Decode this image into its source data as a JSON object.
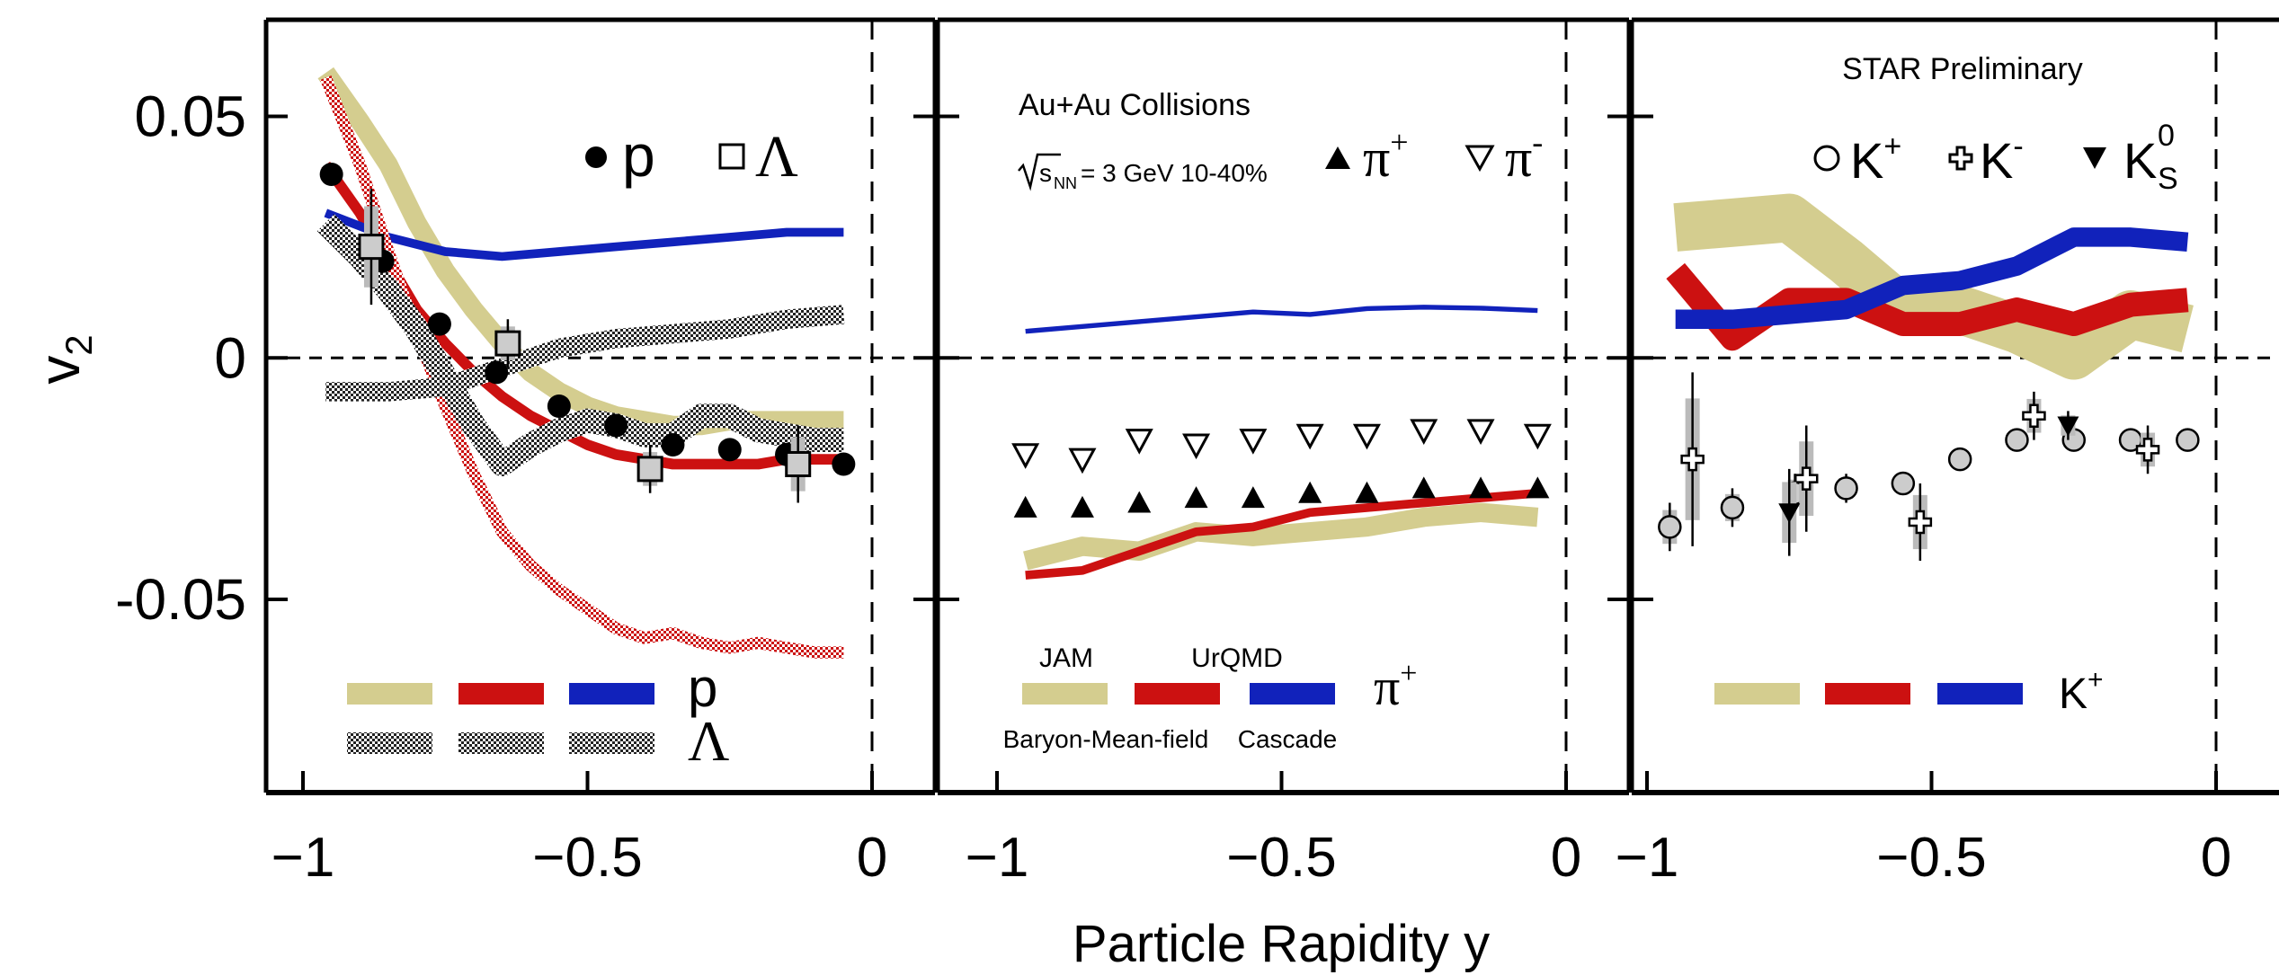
{
  "chart_data": [
    {
      "type": "line",
      "panel": "left",
      "ylabel": "v",
      "ylabel_sub": "2",
      "xlim": [
        -1.1,
        0.1
      ],
      "ylim": [
        -0.09,
        0.07
      ],
      "x_ticks": [
        -1,
        -0.5,
        0
      ],
      "x_tick_labels": [
        "−1",
        "−0.5",
        "0"
      ],
      "y_ticks": [
        0.05,
        0,
        -0.05
      ],
      "y_tick_labels": [
        "0.05",
        "0",
        "-0.05"
      ],
      "legend_markers": [
        {
          "symbol": "circle-filled",
          "label": "p"
        },
        {
          "symbol": "square-open",
          "label": "Λ"
        }
      ],
      "legend_bands": {
        "row1_label": "p",
        "row2_label": "Λ"
      },
      "series": [
        {
          "kind": "band",
          "model": "JAM",
          "color": "#d4cd8f",
          "width": 0.004,
          "x": [
            -0.96,
            -0.9,
            -0.85,
            -0.8,
            -0.75,
            -0.7,
            -0.65,
            -0.6,
            -0.55,
            -0.5,
            -0.45,
            -0.4,
            -0.35,
            -0.3,
            -0.25,
            -0.2,
            -0.15,
            -0.1,
            -0.05
          ],
          "y": [
            0.059,
            0.049,
            0.04,
            0.028,
            0.018,
            0.01,
            0.003,
            -0.003,
            -0.007,
            -0.01,
            -0.012,
            -0.013,
            -0.014,
            -0.014,
            -0.013,
            -0.013,
            -0.013,
            -0.013,
            -0.013
          ]
        },
        {
          "kind": "line",
          "model": "UrQMD",
          "color": "#cc1111",
          "width": 0.0022,
          "x": [
            -0.96,
            -0.9,
            -0.85,
            -0.8,
            -0.75,
            -0.7,
            -0.65,
            -0.6,
            -0.55,
            -0.5,
            -0.45,
            -0.4,
            -0.35,
            -0.3,
            -0.25,
            -0.2,
            -0.15,
            -0.1,
            -0.05
          ],
          "y": [
            0.04,
            0.03,
            0.02,
            0.01,
            0.003,
            -0.003,
            -0.008,
            -0.012,
            -0.015,
            -0.018,
            -0.02,
            -0.021,
            -0.022,
            -0.022,
            -0.022,
            -0.022,
            -0.021,
            -0.021,
            -0.021
          ]
        },
        {
          "kind": "line",
          "model": "Cascade",
          "color": "#1122bb",
          "width": 0.0018,
          "x": [
            -0.96,
            -0.85,
            -0.75,
            -0.65,
            -0.55,
            -0.45,
            -0.35,
            -0.25,
            -0.15,
            -0.05
          ],
          "y": [
            0.03,
            0.025,
            0.022,
            0.021,
            0.022,
            0.023,
            0.024,
            0.025,
            0.026,
            0.026
          ]
        },
        {
          "kind": "hatched",
          "model": "UrQMD",
          "color": "#cc1111",
          "width": 0.0025,
          "x": [
            -0.96,
            -0.9,
            -0.85,
            -0.8,
            -0.75,
            -0.7,
            -0.65,
            -0.6,
            -0.55,
            -0.5,
            -0.45,
            -0.4,
            -0.35,
            -0.3,
            -0.25,
            -0.2,
            -0.15,
            -0.1,
            -0.05
          ],
          "y": [
            0.058,
            0.04,
            0.022,
            0.005,
            -0.01,
            -0.024,
            -0.036,
            -0.043,
            -0.048,
            -0.052,
            -0.056,
            -0.058,
            -0.057,
            -0.059,
            -0.06,
            -0.059,
            -0.06,
            -0.061,
            -0.061
          ]
        },
        {
          "kind": "hatched",
          "model": "JAM",
          "color": "#222222",
          "width": 0.005,
          "x": [
            -0.96,
            -0.9,
            -0.85,
            -0.8,
            -0.75,
            -0.7,
            -0.65,
            -0.6,
            -0.55,
            -0.5,
            -0.45,
            -0.4,
            -0.35,
            -0.3,
            -0.25,
            -0.2,
            -0.15,
            -0.1,
            -0.05
          ],
          "y": [
            0.028,
            0.021,
            0.014,
            0.006,
            -0.004,
            -0.014,
            -0.022,
            -0.018,
            -0.015,
            -0.013,
            -0.014,
            -0.016,
            -0.016,
            -0.012,
            -0.012,
            -0.015,
            -0.016,
            -0.017,
            -0.017
          ]
        },
        {
          "kind": "hatched",
          "model": "UrQMD",
          "color": "#222222",
          "width": 0.004,
          "x": [
            -0.96,
            -0.85,
            -0.75,
            -0.65,
            -0.55,
            -0.45,
            -0.35,
            -0.25,
            -0.15,
            -0.05
          ],
          "y": [
            -0.007,
            -0.007,
            -0.006,
            -0.002,
            0.002,
            0.004,
            0.005,
            0.006,
            0.008,
            0.009
          ]
        }
      ],
      "markers": [
        {
          "name": "p",
          "symbol": "circle-filled",
          "x": [
            -0.95,
            -0.88,
            -0.86,
            -0.76,
            -0.66,
            -0.55,
            -0.45,
            -0.35,
            -0.25,
            -0.15,
            -0.05
          ],
          "y": [
            0.038,
            0.022,
            0.02,
            0.007,
            -0.003,
            -0.01,
            -0.014,
            -0.018,
            -0.019,
            -0.02,
            -0.022
          ]
        },
        {
          "name": "Λ",
          "symbol": "square-open",
          "x": [
            -0.88,
            -0.64,
            -0.39,
            -0.13
          ],
          "y": [
            0.023,
            0.003,
            -0.023,
            -0.022
          ],
          "err": [
            0.012,
            0.005,
            0.005,
            0.008
          ]
        }
      ]
    },
    {
      "type": "line",
      "panel": "middle",
      "xlim": [
        -1.1,
        0.1
      ],
      "ylim": [
        -0.09,
        0.07
      ],
      "x_ticks": [
        -1,
        -0.5,
        0
      ],
      "x_tick_labels": [
        "−1",
        "−0.5",
        "0"
      ],
      "annotations": [
        {
          "id": "collisions",
          "text": "Au+Au Collisions"
        },
        {
          "id": "energy",
          "text": "= 3 GeV 10-40%"
        },
        {
          "id": "snn_base",
          "text": "s"
        },
        {
          "id": "snn_sub",
          "text": "NN"
        }
      ],
      "legend_markers": [
        {
          "symbol": "triangle-up-filled",
          "label": "π",
          "sup": "+"
        },
        {
          "symbol": "triangle-down-open",
          "label": "π",
          "sup": "-"
        }
      ],
      "legend_bands": {
        "model_labels_top": [
          "JAM",
          "UrQMD"
        ],
        "model_labels_bottom": [
          "Baryon-Mean-field",
          "Cascade"
        ],
        "row1_label": "π",
        "row1_sup": "+"
      },
      "series": [
        {
          "kind": "band",
          "model": "JAM",
          "color": "#d4cd8f",
          "width": 0.004,
          "x": [
            -0.95,
            -0.85,
            -0.75,
            -0.65,
            -0.55,
            -0.45,
            -0.35,
            -0.25,
            -0.15,
            -0.05
          ],
          "y": [
            -0.042,
            -0.039,
            -0.04,
            -0.036,
            -0.037,
            -0.036,
            -0.035,
            -0.033,
            -0.032,
            -0.033
          ]
        },
        {
          "kind": "line",
          "model": "UrQMD",
          "color": "#cc1111",
          "width": 0.0018,
          "x": [
            -0.95,
            -0.85,
            -0.75,
            -0.65,
            -0.55,
            -0.45,
            -0.35,
            -0.25,
            -0.15,
            -0.05
          ],
          "y": [
            -0.045,
            -0.044,
            -0.04,
            -0.036,
            -0.035,
            -0.032,
            -0.031,
            -0.03,
            -0.029,
            -0.028
          ]
        },
        {
          "kind": "line",
          "model": "Cascade",
          "color": "#1122bb",
          "width": 0.001,
          "x": [
            -0.95,
            -0.85,
            -0.75,
            -0.65,
            -0.55,
            -0.45,
            -0.35,
            -0.25,
            -0.15,
            -0.05
          ],
          "y": [
            0.0055,
            0.0065,
            0.0075,
            0.0085,
            0.0095,
            0.009,
            0.0102,
            0.0105,
            0.0103,
            0.0098
          ]
        }
      ],
      "markers": [
        {
          "name": "π+",
          "symbol": "triangle-up-filled",
          "x": [
            -0.95,
            -0.85,
            -0.75,
            -0.65,
            -0.55,
            -0.45,
            -0.35,
            -0.25,
            -0.15,
            -0.05
          ],
          "y": [
            -0.031,
            -0.031,
            -0.03,
            -0.029,
            -0.029,
            -0.028,
            -0.028,
            -0.027,
            -0.027,
            -0.027
          ]
        },
        {
          "name": "π-",
          "symbol": "triangle-down-open",
          "x": [
            -0.95,
            -0.85,
            -0.75,
            -0.65,
            -0.55,
            -0.45,
            -0.35,
            -0.25,
            -0.15,
            -0.05
          ],
          "y": [
            -0.02,
            -0.021,
            -0.017,
            -0.018,
            -0.017,
            -0.016,
            -0.016,
            -0.015,
            -0.015,
            -0.016
          ]
        }
      ]
    },
    {
      "type": "line",
      "panel": "right",
      "xlim": [
        -1.1,
        0.1
      ],
      "ylim": [
        -0.09,
        0.07
      ],
      "x_ticks": [
        -1,
        -0.5,
        0
      ],
      "x_tick_labels": [
        "−1",
        "−0.5",
        "0"
      ],
      "annotations": [
        {
          "id": "preliminary",
          "text": "STAR Preliminary"
        }
      ],
      "legend_markers": [
        {
          "symbol": "circle-open",
          "label": "K",
          "sup": "+"
        },
        {
          "symbol": "cross-open",
          "label": "K",
          "sup": "-"
        },
        {
          "symbol": "triangle-down-filled",
          "label": "K",
          "sup": "0",
          "sub": "S"
        }
      ],
      "legend_bands": {
        "row1_label": "K",
        "row1_sup": "+"
      },
      "series": [
        {
          "kind": "band",
          "model": "JAM",
          "color": "#d4cd8f",
          "width": 0.01,
          "x": [
            -0.95,
            -0.85,
            -0.75,
            -0.65,
            -0.55,
            -0.45,
            -0.35,
            -0.25,
            -0.15,
            -0.05
          ],
          "y": [
            0.027,
            0.028,
            0.029,
            0.02,
            0.01,
            0.01,
            0.006,
            0.0005,
            0.009,
            0.006
          ]
        },
        {
          "kind": "band",
          "model": "UrQMD",
          "color": "#cc1111",
          "width": 0.005,
          "x": [
            -0.95,
            -0.85,
            -0.75,
            -0.65,
            -0.55,
            -0.45,
            -0.35,
            -0.25,
            -0.15,
            -0.05
          ],
          "y": [
            0.018,
            0.004,
            0.012,
            0.012,
            0.007,
            0.007,
            0.01,
            0.007,
            0.011,
            0.012
          ]
        },
        {
          "kind": "band",
          "model": "Cascade",
          "color": "#1122bb",
          "width": 0.004,
          "x": [
            -0.95,
            -0.85,
            -0.75,
            -0.65,
            -0.55,
            -0.45,
            -0.35,
            -0.25,
            -0.15,
            -0.05
          ],
          "y": [
            0.008,
            0.008,
            0.009,
            0.01,
            0.015,
            0.016,
            0.019,
            0.025,
            0.025,
            0.024
          ]
        }
      ],
      "markers": [
        {
          "name": "K+",
          "symbol": "circle-open",
          "x": [
            -0.96,
            -0.85,
            -0.74,
            -0.65,
            -0.55,
            -0.45,
            -0.35,
            -0.25,
            -0.15,
            -0.05
          ],
          "y": [
            -0.035,
            -0.031,
            -0.028,
            -0.027,
            -0.026,
            -0.021,
            -0.017,
            -0.017,
            -0.017,
            -0.017
          ],
          "err": [
            0.005,
            0.004,
            0.004,
            0.003,
            0.002,
            0.002,
            0.002,
            0.002,
            0.002,
            0.002
          ]
        },
        {
          "name": "K-",
          "symbol": "cross-open",
          "x": [
            -0.92,
            -0.72,
            -0.52,
            -0.32,
            -0.12
          ],
          "y": [
            -0.021,
            -0.025,
            -0.034,
            -0.012,
            -0.019
          ],
          "err": [
            0.018,
            0.011,
            0.008,
            0.005,
            0.005
          ]
        },
        {
          "name": "KS0",
          "symbol": "triangle-down-filled",
          "x": [
            -0.75,
            -0.26
          ],
          "y": [
            -0.032,
            -0.014
          ],
          "err": [
            0.009,
            0.003
          ]
        }
      ]
    }
  ],
  "shared_axis": {
    "xlabel": "Particle Rapidity y"
  }
}
